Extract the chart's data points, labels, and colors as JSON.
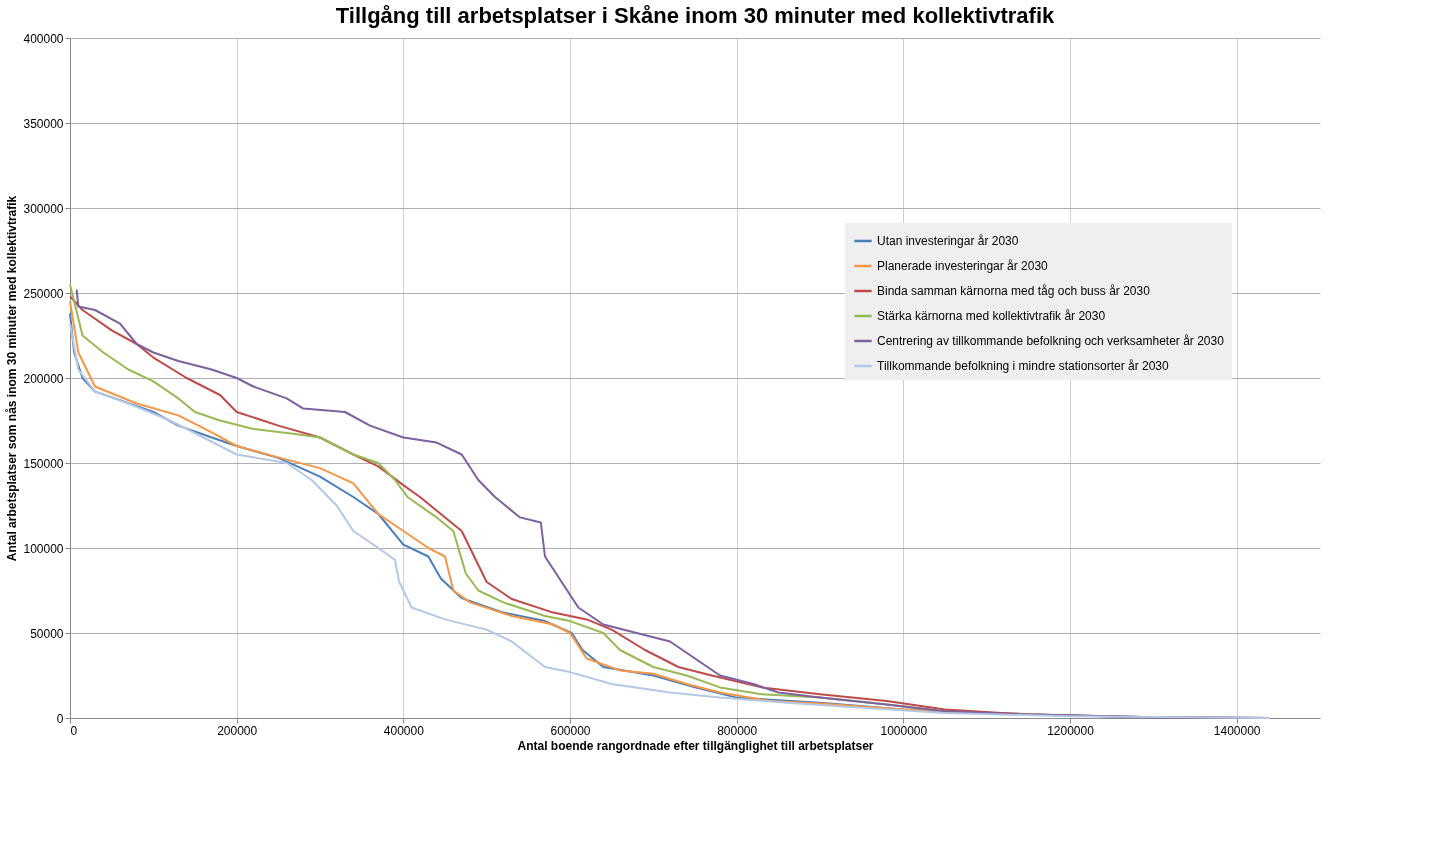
{
  "chart_data": {
    "type": "line",
    "title": "Tillgång till arbetsplatser i Skåne inom 30 minuter med kollektivtrafik",
    "xlabel": "Antal boende rangordnade efter tillgänglighet till arbetsplatser",
    "ylabel": "Antal arbetsplatser som nås inom 30 minuter med kollektivtrafik",
    "xlim": [
      0,
      1500000
    ],
    "xticks": [
      0,
      200000,
      400000,
      600000,
      800000,
      1000000,
      1200000,
      1400000
    ],
    "ylim": [
      0,
      400000
    ],
    "yticks": [
      0,
      50000,
      100000,
      150000,
      200000,
      250000,
      300000,
      350000,
      400000
    ],
    "grid": true,
    "legend": "top right",
    "marker": "none",
    "line_style": "solid",
    "series": [
      {
        "name": "Utan investeringar år 2030",
        "color": "#4a7ebb",
        "x": [
          0,
          5000,
          15000,
          30000,
          60000,
          100000,
          130000,
          170000,
          200000,
          250000,
          300000,
          340000,
          370000,
          400000,
          430000,
          445000,
          470000,
          520000,
          570000,
          602000,
          615000,
          640000,
          700000,
          750000,
          800000,
          900000,
          1000000,
          1100000,
          1200000,
          1300000,
          1440000
        ],
        "values": [
          238000,
          215000,
          200000,
          192000,
          187000,
          180000,
          172000,
          165000,
          160000,
          153000,
          142000,
          130000,
          120000,
          102000,
          95000,
          82000,
          70500,
          62000,
          57000,
          50000,
          40000,
          30000,
          25000,
          18000,
          12000,
          9000,
          5000,
          3000,
          1500,
          500,
          0
        ]
      },
      {
        "name": "Planerade investeringar år 2030",
        "color": "#f79646",
        "x": [
          0,
          10000,
          30000,
          80000,
          130000,
          170000,
          200000,
          260000,
          300000,
          340000,
          370000,
          400000,
          430000,
          450000,
          460000,
          480000,
          530000,
          580000,
          600000,
          620000,
          660000,
          700000,
          740000,
          780000,
          840000,
          900000,
          1000000,
          1100000,
          1200000
        ],
        "values": [
          245000,
          215000,
          195000,
          185000,
          178000,
          168000,
          160000,
          152000,
          147000,
          138000,
          120000,
          110000,
          100000,
          95000,
          75000,
          68000,
          60000,
          55000,
          50000,
          35000,
          28000,
          26000,
          20000,
          15000,
          10000,
          8500,
          5000,
          3000,
          1500
        ]
      },
      {
        "name": "Binda samman kärnorna med tåg och buss år 2030",
        "color": "#be4b48",
        "x": [
          0,
          15000,
          50000,
          80000,
          100000,
          140000,
          180000,
          200000,
          250000,
          300000,
          340000,
          370000,
          400000,
          420000,
          445000,
          470000,
          485000,
          500000,
          530000,
          580000,
          620000,
          650000,
          690000,
          730000,
          770000,
          830000,
          900000,
          980000,
          1050000,
          1150000,
          1300000,
          1440000
        ],
        "values": [
          248000,
          240000,
          228000,
          220000,
          212000,
          200000,
          190000,
          180000,
          172000,
          165000,
          155000,
          148000,
          137000,
          130000,
          120000,
          110000,
          95000,
          80000,
          70000,
          62000,
          58000,
          52000,
          40000,
          30000,
          25000,
          18000,
          14000,
          10000,
          5000,
          2000,
          500,
          0
        ]
      },
      {
        "name": "Stärka kärnorna med kollektivtrafik år 2030",
        "color": "#98b954",
        "x": [
          0,
          15000,
          40000,
          70000,
          100000,
          130000,
          150000,
          180000,
          220000,
          270000,
          300000,
          340000,
          370000,
          390000,
          405000,
          440000,
          460000,
          475000,
          490000,
          520000,
          570000,
          600000,
          640000,
          660000,
          700000,
          740000,
          780000,
          830000,
          900000,
          980000,
          1050000
        ],
        "values": [
          255000,
          225000,
          215000,
          205000,
          198000,
          188000,
          180000,
          175000,
          170000,
          167000,
          165000,
          155000,
          150000,
          140000,
          130000,
          118000,
          110000,
          85000,
          75000,
          68000,
          60000,
          57000,
          50000,
          40000,
          30000,
          25000,
          18000,
          14000,
          12000,
          8000,
          4000
        ]
      },
      {
        "name": "Centrering av tillkommande befolkning och verksamheter år 2030",
        "color": "#7d60a0",
        "x": [
          8000,
          10000,
          30000,
          60000,
          80000,
          100000,
          130000,
          170000,
          200000,
          220000,
          260000,
          280000,
          330000,
          360000,
          400000,
          440000,
          470000,
          490000,
          510000,
          540000,
          565000,
          570000,
          590000,
          610000,
          640000,
          680000,
          720000,
          750000,
          780000,
          820000,
          850000,
          900000,
          980000,
          1050000,
          1150000,
          1300000,
          1440000
        ],
        "values": [
          252000,
          242000,
          240000,
          232000,
          220000,
          215000,
          210000,
          205000,
          200000,
          195000,
          188000,
          182000,
          180000,
          172000,
          165000,
          162000,
          155000,
          140000,
          130000,
          118000,
          115000,
          95000,
          80000,
          65000,
          55000,
          50000,
          45000,
          35000,
          25000,
          20000,
          15000,
          12000,
          8000,
          4000,
          2000,
          500,
          0
        ]
      },
      {
        "name": "Tillkommande befolkning i mindre stationsorter år 2030",
        "color": "#b3c9e6",
        "x": [
          0,
          10000,
          30000,
          70000,
          120000,
          160000,
          200000,
          260000,
          290000,
          320000,
          340000,
          370000,
          390000,
          395000,
          410000,
          450000,
          500000,
          530000,
          570000,
          600000,
          650000,
          720000,
          780000,
          860000,
          950000,
          1050000,
          1200000,
          1440000
        ],
        "values": [
          232000,
          205000,
          192000,
          185000,
          175000,
          165000,
          155000,
          150000,
          140000,
          125000,
          110000,
          100000,
          93000,
          80000,
          65000,
          58000,
          52000,
          45000,
          30000,
          27000,
          20000,
          15000,
          12000,
          9000,
          6000,
          3000,
          1000,
          0
        ]
      }
    ]
  }
}
